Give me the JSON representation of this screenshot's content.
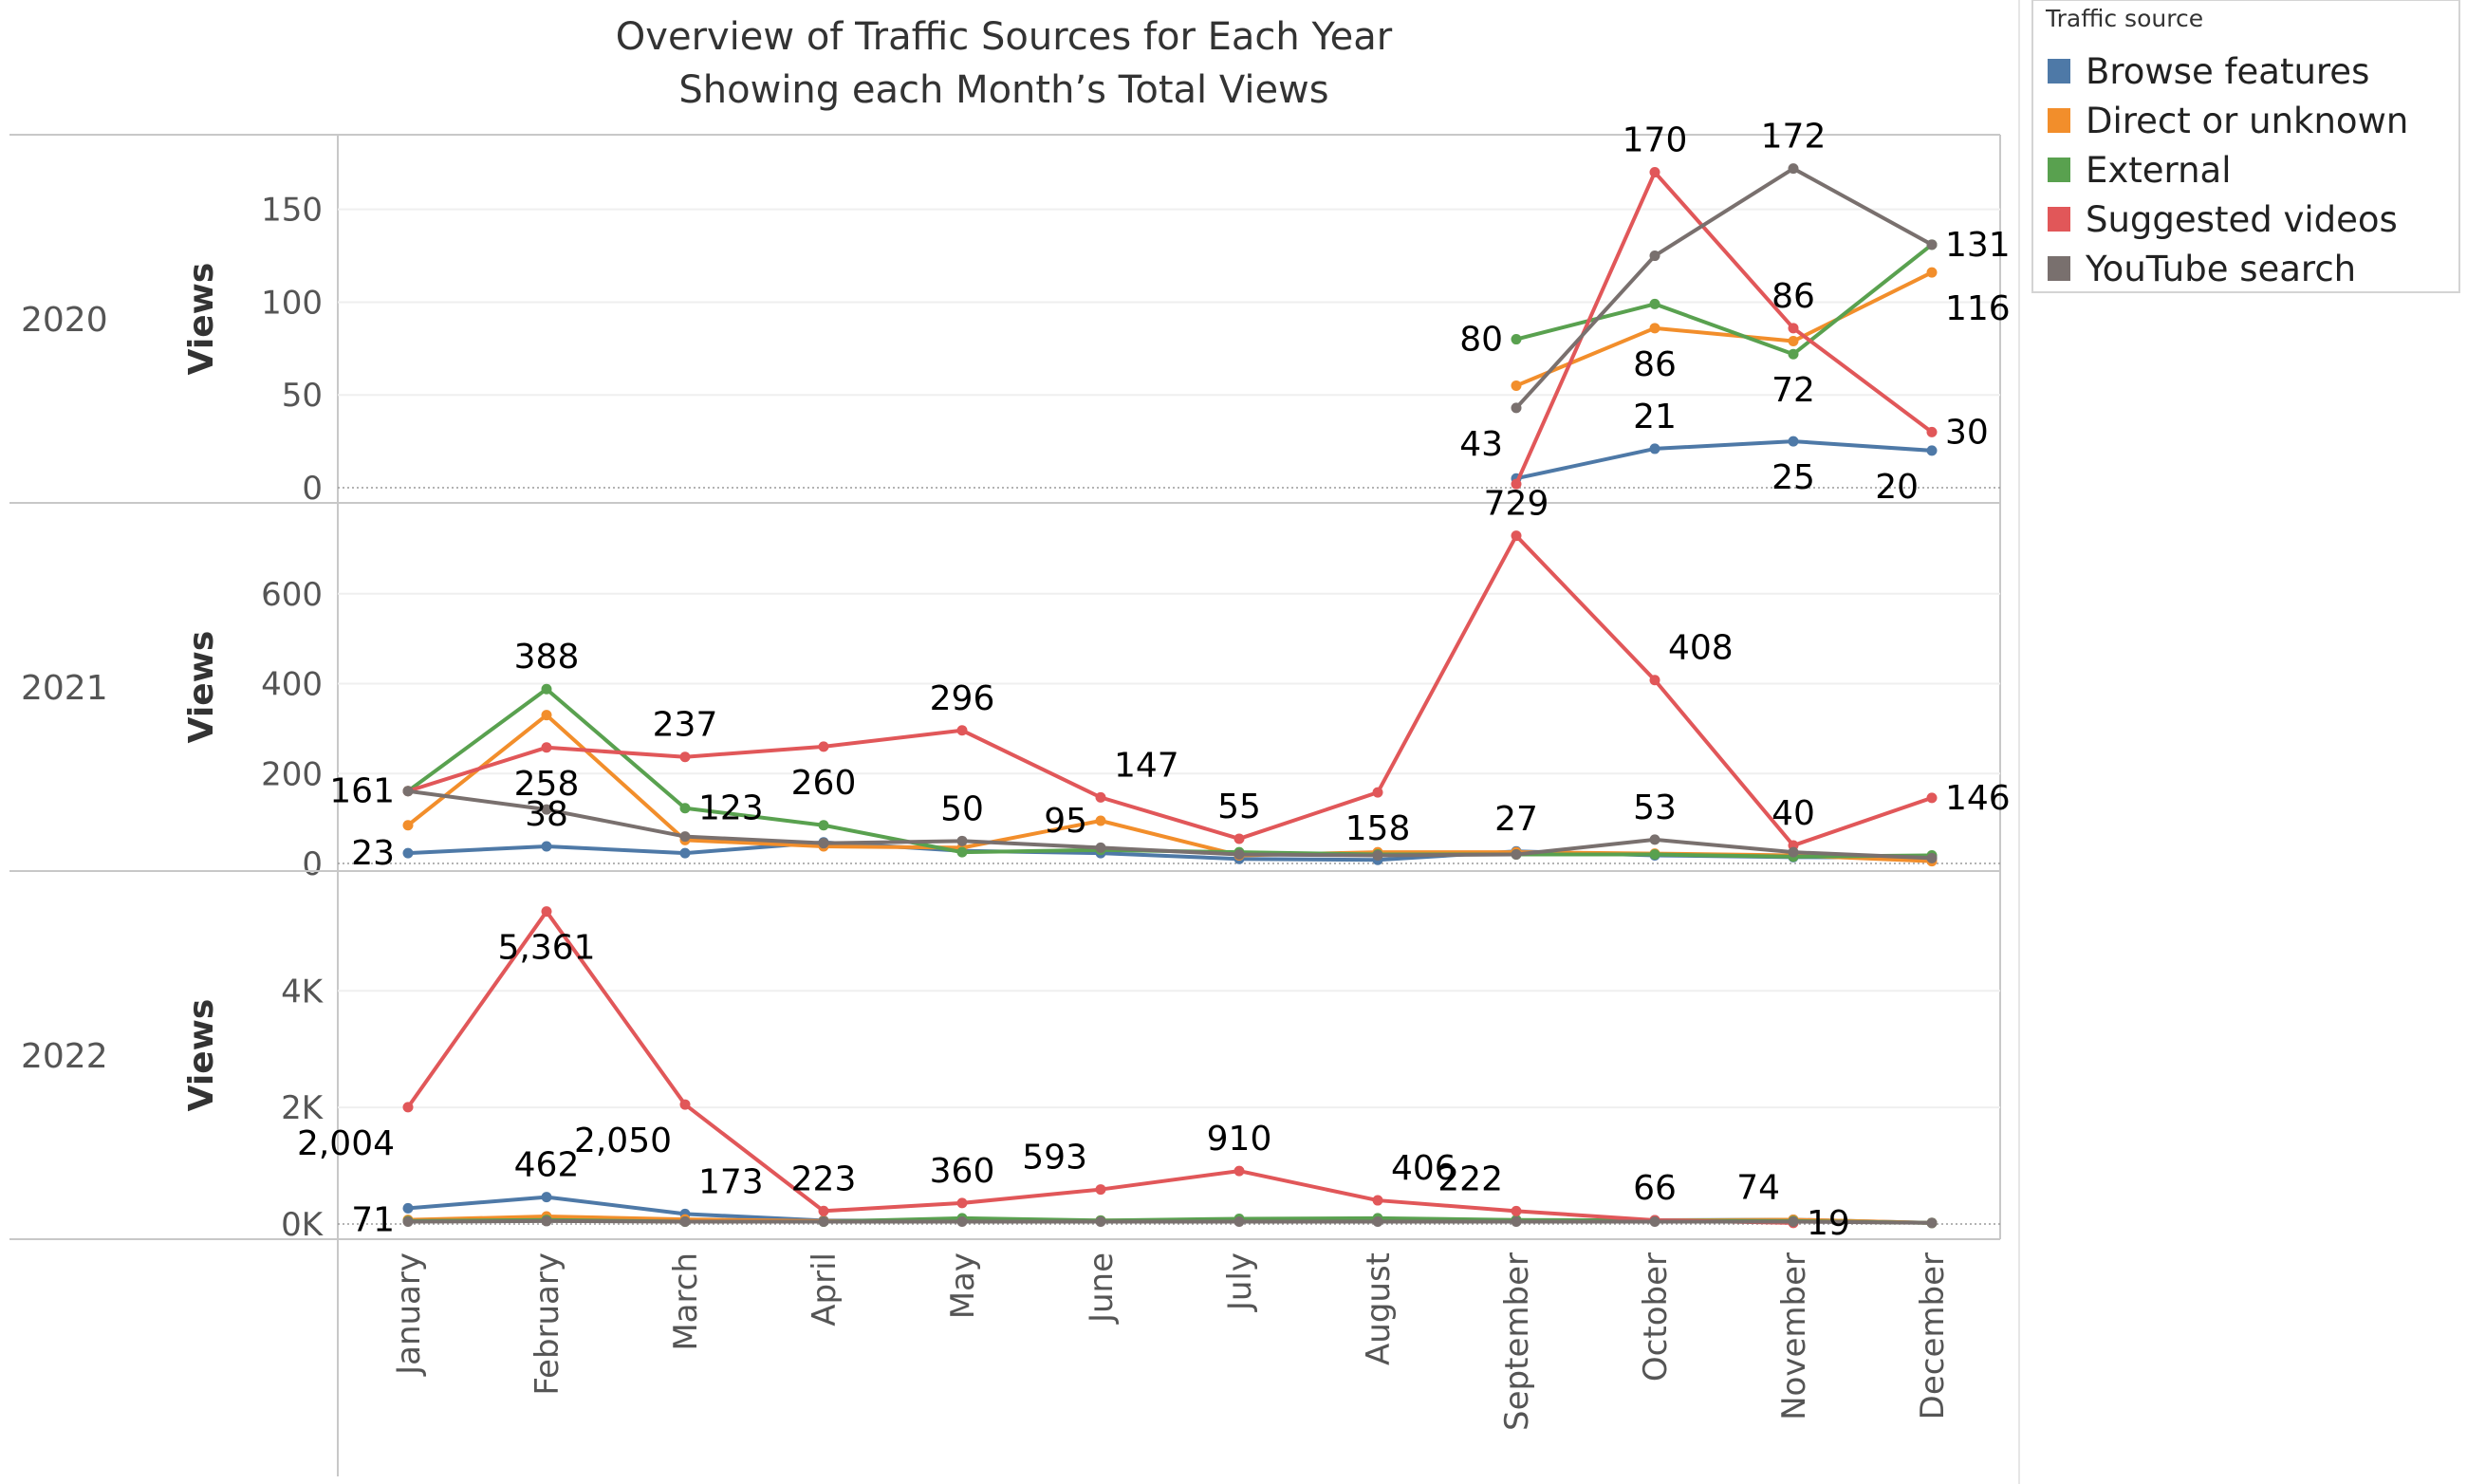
{
  "chart_data": {
    "type": "line",
    "title": "Overview of Traffic Sources for Each Year",
    "subtitle": "Showing each Month’s Total Views",
    "ylabel": "Views",
    "xlabel": "",
    "categories": [
      "January",
      "February",
      "March",
      "April",
      "May",
      "June",
      "July",
      "August",
      "September",
      "October",
      "November",
      "December"
    ],
    "legend": {
      "title": "Traffic source",
      "placement": "top-right",
      "entries": [
        {
          "name": "Browse features",
          "color": "#4e79a7"
        },
        {
          "name": "Direct or unknown",
          "color": "#f28e2b"
        },
        {
          "name": "External",
          "color": "#59a14f"
        },
        {
          "name": "Suggested videos",
          "color": "#e15759"
        },
        {
          "name": "YouTube search",
          "color": "#79706e"
        }
      ]
    },
    "panels": [
      {
        "year": "2020",
        "ylim": [
          0,
          180
        ],
        "ticks": [
          0,
          50,
          100,
          150
        ],
        "tick_labels": [
          "0",
          "50",
          "100",
          "150"
        ],
        "series": [
          {
            "name": "Browse features",
            "values": [
              null,
              null,
              null,
              null,
              null,
              null,
              null,
              null,
              5,
              21,
              25,
              20
            ]
          },
          {
            "name": "Direct or unknown",
            "values": [
              null,
              null,
              null,
              null,
              null,
              null,
              null,
              null,
              55,
              86,
              79,
              116
            ]
          },
          {
            "name": "External",
            "values": [
              null,
              null,
              null,
              null,
              null,
              null,
              null,
              null,
              80,
              99,
              72,
              131
            ]
          },
          {
            "name": "Suggested videos",
            "values": [
              null,
              null,
              null,
              null,
              null,
              null,
              null,
              null,
              2,
              170,
              86,
              30
            ]
          },
          {
            "name": "YouTube search",
            "values": [
              null,
              null,
              null,
              null,
              null,
              null,
              null,
              null,
              43,
              125,
              172,
              131
            ]
          }
        ],
        "labels": [
          {
            "text": "80",
            "month": 8,
            "value": 80,
            "pos": "left"
          },
          {
            "text": "43",
            "month": 8,
            "value": 43,
            "pos": "below-left"
          },
          {
            "text": "170",
            "month": 9,
            "value": 170,
            "pos": "above"
          },
          {
            "text": "86",
            "month": 9,
            "value": 86,
            "pos": "below"
          },
          {
            "text": "21",
            "month": 9,
            "value": 21,
            "pos": "above"
          },
          {
            "text": "172",
            "month": 10,
            "value": 172,
            "pos": "above"
          },
          {
            "text": "86",
            "month": 10,
            "value": 86,
            "pos": "above"
          },
          {
            "text": "72",
            "month": 10,
            "value": 72,
            "pos": "below"
          },
          {
            "text": "25",
            "month": 10,
            "value": 25,
            "pos": "below"
          },
          {
            "text": "131",
            "month": 11,
            "value": 131,
            "pos": "right"
          },
          {
            "text": "116",
            "month": 11,
            "value": 116,
            "pos": "below-right"
          },
          {
            "text": "30",
            "month": 11,
            "value": 30,
            "pos": "right"
          },
          {
            "text": "20",
            "month": 11,
            "value": 20,
            "pos": "below-left"
          }
        ]
      },
      {
        "year": "2021",
        "ylim": [
          0,
          760
        ],
        "ticks": [
          0,
          200,
          400,
          600
        ],
        "tick_labels": [
          "0",
          "200",
          "400",
          "600"
        ],
        "series": [
          {
            "name": "Browse features",
            "values": [
              23,
              38,
              23,
              47,
              28,
              23,
              10,
              8,
              27,
              18,
              14,
              13
            ]
          },
          {
            "name": "Direct or unknown",
            "values": [
              85,
              330,
              52,
              38,
              35,
              95,
              18,
              25,
              25,
              22,
              18,
              5
            ]
          },
          {
            "name": "External",
            "values": [
              161,
              388,
              123,
              85,
              25,
              30,
              25,
              20,
              20,
              20,
              15,
              18
            ]
          },
          {
            "name": "Suggested videos",
            "values": [
              161,
              258,
              237,
              260,
              296,
              147,
              55,
              158,
              729,
              408,
              40,
              146
            ]
          },
          {
            "name": "YouTube search",
            "values": [
              161,
              120,
              60,
              45,
              50,
              35,
              20,
              18,
              20,
              53,
              25,
              12
            ]
          }
        ],
        "labels": [
          {
            "text": "161",
            "month": 0,
            "value": 161,
            "pos": "left"
          },
          {
            "text": "23",
            "month": 0,
            "value": 23,
            "pos": "left"
          },
          {
            "text": "388",
            "month": 1,
            "value": 388,
            "pos": "above"
          },
          {
            "text": "258",
            "month": 1,
            "value": 258,
            "pos": "below"
          },
          {
            "text": "38",
            "month": 1,
            "value": 38,
            "pos": "above"
          },
          {
            "text": "237",
            "month": 2,
            "value": 237,
            "pos": "above"
          },
          {
            "text": "123",
            "month": 2,
            "value": 123,
            "pos": "right"
          },
          {
            "text": "260",
            "month": 3,
            "value": 260,
            "pos": "below"
          },
          {
            "text": "296",
            "month": 4,
            "value": 296,
            "pos": "above"
          },
          {
            "text": "50",
            "month": 4,
            "value": 50,
            "pos": "above"
          },
          {
            "text": "147",
            "month": 5,
            "value": 147,
            "pos": "above-right"
          },
          {
            "text": "95",
            "month": 5,
            "value": 95,
            "pos": "left"
          },
          {
            "text": "55",
            "month": 6,
            "value": 55,
            "pos": "above"
          },
          {
            "text": "158",
            "month": 7,
            "value": 158,
            "pos": "below"
          },
          {
            "text": "729",
            "month": 8,
            "value": 729,
            "pos": "above"
          },
          {
            "text": "27",
            "month": 8,
            "value": 27,
            "pos": "above"
          },
          {
            "text": "408",
            "month": 9,
            "value": 408,
            "pos": "above-right"
          },
          {
            "text": "53",
            "month": 9,
            "value": 53,
            "pos": "above"
          },
          {
            "text": "40",
            "month": 10,
            "value": 40,
            "pos": "above"
          },
          {
            "text": "146",
            "month": 11,
            "value": 146,
            "pos": "right"
          }
        ]
      },
      {
        "year": "2022",
        "ylim": [
          0,
          5600
        ],
        "ticks": [
          0,
          2000,
          4000
        ],
        "tick_labels": [
          "0K",
          "2K",
          "4K"
        ],
        "series": [
          {
            "name": "Browse features",
            "values": [
              270,
              462,
              173,
              60,
              60,
              60,
              60,
              60,
              60,
              66,
              74,
              19
            ]
          },
          {
            "name": "Direct or unknown",
            "values": [
              71,
              130,
              80,
              50,
              60,
              60,
              60,
              80,
              60,
              60,
              74,
              19
            ]
          },
          {
            "name": "External",
            "values": [
              50,
              70,
              40,
              40,
              100,
              60,
              90,
              100,
              70,
              60,
              50,
              19
            ]
          },
          {
            "name": "Suggested videos",
            "values": [
              2004,
              5361,
              2050,
              223,
              360,
              593,
              910,
              406,
              222,
              66,
              19,
              null
            ]
          },
          {
            "name": "YouTube search",
            "values": [
              40,
              50,
              40,
              40,
              40,
              40,
              40,
              40,
              40,
              40,
              40,
              19
            ]
          }
        ],
        "labels": [
          {
            "text": "2,004",
            "month": 0,
            "value": 2004,
            "pos": "below-left"
          },
          {
            "text": "71",
            "month": 0,
            "value": 71,
            "pos": "left"
          },
          {
            "text": "5,361",
            "month": 1,
            "value": 5361,
            "pos": "below"
          },
          {
            "text": "462",
            "month": 1,
            "value": 462,
            "pos": "above"
          },
          {
            "text": "2,050",
            "month": 2,
            "value": 2050,
            "pos": "below-left"
          },
          {
            "text": "173",
            "month": 2,
            "value": 173,
            "pos": "above-right"
          },
          {
            "text": "223",
            "month": 3,
            "value": 223,
            "pos": "above"
          },
          {
            "text": "360",
            "month": 4,
            "value": 360,
            "pos": "above"
          },
          {
            "text": "593",
            "month": 5,
            "value": 593,
            "pos": "above-left"
          },
          {
            "text": "910",
            "month": 6,
            "value": 910,
            "pos": "above"
          },
          {
            "text": "406",
            "month": 7,
            "value": 406,
            "pos": "above-right"
          },
          {
            "text": "222",
            "month": 8,
            "value": 222,
            "pos": "above-left"
          },
          {
            "text": "66",
            "month": 9,
            "value": 66,
            "pos": "above"
          },
          {
            "text": "74",
            "month": 10,
            "value": 74,
            "pos": "above-left"
          },
          {
            "text": "19",
            "month": 10,
            "value": 19,
            "pos": "right"
          }
        ]
      }
    ],
    "grid": true
  }
}
